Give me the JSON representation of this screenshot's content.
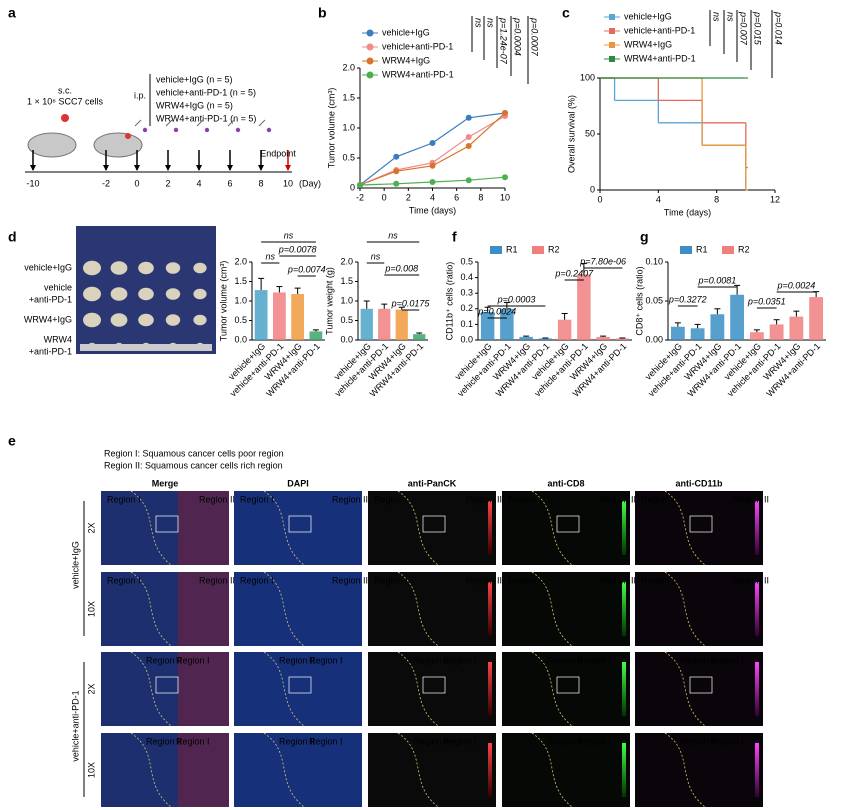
{
  "panel_a": {
    "label": "a",
    "sc": "s.c.",
    "cells": "1 × 10⁶ SCC7 cells",
    "ip": "i.p.",
    "groups": [
      "vehicle+IgG (n = 5)",
      "vehicle+anti-PD-1 (n = 5)",
      "WRW4+IgG (n = 5)",
      "WRW4+anti-PD-1 (n = 5)"
    ],
    "endpoint": "Endpoint",
    "days": [
      -10,
      -2,
      0,
      2,
      4,
      6,
      8,
      10
    ],
    "day_unit": "(Day)"
  },
  "chart_data": [
    {
      "type": "line",
      "panel": "b",
      "x": [
        -2,
        1,
        4,
        7,
        10
      ],
      "xlim": [
        -2,
        10
      ],
      "xticks": [
        -2,
        0,
        2,
        4,
        6,
        8,
        10
      ],
      "ylim": [
        0,
        2
      ],
      "yticks": [
        0,
        0.5,
        {
          "value": 1,
          "label": "1.0"
        },
        1.5,
        {
          "value": 2,
          "label": "2.0"
        }
      ],
      "xlabel": "Time (days)",
      "ylabel": "Tumor volume (cm³)",
      "series": [
        {
          "name": "vehicle+IgG",
          "color": "#3b7bbf",
          "values": [
            0.05,
            0.52,
            0.75,
            1.17,
            1.25
          ]
        },
        {
          "name": "vehicle+anti-PD-1",
          "color": "#f28a8a",
          "values": [
            0.05,
            0.3,
            0.42,
            0.85,
            1.2
          ]
        },
        {
          "name": "WRW4+IgG",
          "color": "#d9752b",
          "values": [
            0.05,
            0.28,
            0.37,
            0.7,
            1.25
          ]
        },
        {
          "name": "WRW4+anti-PD-1",
          "color": "#4caf50",
          "values": [
            0.05,
            0.07,
            0.1,
            0.13,
            0.18
          ]
        }
      ],
      "annotations": [
        "ns",
        "ns",
        "p=1.24e-07",
        "p=0.0004",
        "p=0.0007"
      ]
    },
    {
      "type": "step",
      "panel": "c",
      "x": [
        0,
        1,
        4,
        7,
        10
      ],
      "xlim": [
        0,
        12
      ],
      "xticks": [
        0,
        4,
        8,
        12
      ],
      "ylim": [
        0,
        100
      ],
      "yticks": [
        0,
        50,
        100
      ],
      "xlabel": "Time (days)",
      "ylabel": "Overall survival (%)",
      "series": [
        {
          "name": "vehicle+IgG",
          "color": "#5aa5d6",
          "values": [
            100,
            80,
            60,
            40,
            0
          ]
        },
        {
          "name": "vehicle+anti-PD-1",
          "color": "#e36b5b",
          "values": [
            100,
            100,
            80,
            60,
            20
          ]
        },
        {
          "name": "WRW4+IgG",
          "color": "#e8963f",
          "values": [
            100,
            100,
            100,
            40,
            0
          ]
        },
        {
          "name": "WRW4+anti-PD-1",
          "color": "#2e8b3d",
          "values": [
            100,
            100,
            100,
            100,
            100
          ]
        }
      ],
      "annotations": [
        "ns",
        "ns",
        "p=0.007",
        "p=0.015",
        "p=0.014"
      ]
    },
    {
      "type": "bar",
      "categories": [
        "vehicle+IgG",
        "vehicle+anti-PD-1",
        "WRW4+IgG",
        "WRW4+anti-PD-1"
      ],
      "values": [
        1.28,
        1.22,
        1.18,
        0.22
      ],
      "errors": [
        0.3,
        0.15,
        0.15,
        0.04
      ],
      "colors": [
        "#4aa3c7",
        "#f07f7f",
        "#f09a3e",
        "#3aa668"
      ],
      "ylim": [
        0,
        2
      ],
      "yticks": [
        {
          "value": 0,
          "label": "0.0"
        },
        0.5,
        {
          "value": 1,
          "label": "1.0"
        },
        1.5,
        {
          "value": 2,
          "label": "2.0"
        }
      ],
      "ylabel": "Tumor volume (cm³)",
      "annotations": [
        "ns",
        "ns",
        "p=0.0078",
        "p=0.0074"
      ]
    },
    {
      "type": "bar",
      "categories": [
        "vehicle+IgG",
        "vehicle+anti-PD-1",
        "WRW4+IgG",
        "WRW4+anti-PD-1"
      ],
      "values": [
        0.8,
        0.8,
        0.78,
        0.15
      ],
      "errors": [
        0.2,
        0.12,
        0.06,
        0.03
      ],
      "colors": [
        "#4aa3c7",
        "#f07f7f",
        "#f09a3e",
        "#3aa668"
      ],
      "ylim": [
        0,
        2
      ],
      "yticks": [
        {
          "value": 0,
          "label": "0.0"
        },
        0.5,
        {
          "value": 1,
          "label": "1.0"
        },
        1.5,
        {
          "value": 2,
          "label": "2.0"
        }
      ],
      "ylabel": "Tumor weight (g)",
      "annotations": [
        "ns",
        "ns",
        "p=0.008",
        "p=0.0175"
      ]
    },
    {
      "type": "bar",
      "panel": "f",
      "categories": [
        "vehicle+IgG",
        "vehicle+anti-PD-1",
        "WRW4+IgG",
        "WRW4+anti-PD-1",
        "vehicle+IgG",
        "vehicle+anti-PD-1",
        "WRW4+IgG",
        "WRW4+anti-PD-1"
      ],
      "series": [
        {
          "name": "R1",
          "color": "#3a8fc6",
          "values": [
            0.18,
            0.2,
            0.02,
            0.01,
            null,
            null,
            null,
            null
          ],
          "errors": [
            0.03,
            0.04,
            0.005,
            0.003,
            null,
            null,
            null,
            null
          ]
        },
        {
          "name": "R2",
          "color": "#f07f7f",
          "values": [
            null,
            null,
            null,
            null,
            0.13,
            0.42,
            0.02,
            0.01
          ],
          "errors": [
            null,
            null,
            null,
            null,
            0.04,
            0.07,
            0.005,
            0.003
          ]
        }
      ],
      "ylim": [
        0,
        0.5
      ],
      "yticks": [
        {
          "value": 0,
          "label": "0.0"
        },
        0.1,
        0.2,
        0.3,
        0.4,
        0.5
      ],
      "ylabel": "CD11b⁺ cells (ratio)",
      "annotations": [
        "p=0.0024",
        "p=0.0003",
        "p=7.80e-06",
        "p=0.2407"
      ]
    },
    {
      "type": "bar",
      "panel": "g",
      "categories": [
        "vehicle+IgG",
        "vehicle+anti-PD-1",
        "WRW4+IgG",
        "WRW4+anti-PD-1",
        "vehicle+IgG",
        "vehicle+anti-PD-1",
        "WRW4+IgG",
        "WRW4+anti-PD-1"
      ],
      "series": [
        {
          "name": "R1",
          "color": "#3a8fc6",
          "values": [
            0.017,
            0.015,
            0.033,
            0.058,
            null,
            null,
            null,
            null
          ],
          "errors": [
            0.005,
            0.005,
            0.007,
            0.012,
            null,
            null,
            null,
            null
          ]
        },
        {
          "name": "R2",
          "color": "#f07f7f",
          "values": [
            null,
            null,
            null,
            null,
            0.01,
            0.02,
            0.03,
            0.055
          ],
          "errors": [
            null,
            null,
            null,
            null,
            0.003,
            0.006,
            0.007,
            0.007
          ]
        }
      ],
      "ylim": [
        0,
        0.1
      ],
      "yticks": [
        {
          "value": 0,
          "label": "0.00"
        },
        {
          "value": 0.05,
          "label": "0.05"
        },
        {
          "value": 0.1,
          "label": "0.10"
        }
      ],
      "ylabel": "CD8⁺ cells (ratio)",
      "annotations": [
        "p=0.3272",
        "p=0.0081",
        "p=0.0351",
        "p=0.0024"
      ]
    }
  ],
  "panel_d": {
    "label": "d",
    "rows": [
      [
        "vehicle+IgG"
      ],
      [
        "vehicle",
        "+anti-PD-1"
      ],
      [
        "WRW4+IgG"
      ],
      [
        "WRW4",
        "+anti-PD-1"
      ]
    ]
  },
  "panel_e": {
    "label": "e",
    "notes": [
      "Region I: Squamous cancer cells poor region",
      "Region II: Squamous cancer cells rich region"
    ],
    "columns": [
      "Merge",
      "DAPI",
      "anti-PanCK",
      "anti-CD8",
      "anti-CD11b"
    ],
    "groups": [
      "vehicle+IgG",
      "vehicle+anti-PD-1"
    ],
    "rows": [
      {
        "zoom": "2X",
        "regions": [
          "Region I",
          "Region II"
        ]
      },
      {
        "zoom": "10X",
        "regions": [
          "Region I",
          "Region II"
        ]
      },
      {
        "zoom": "2X",
        "regions": [
          "Region II",
          "Region I"
        ]
      },
      {
        "zoom": "10X",
        "regions": [
          "Region II",
          "Region I"
        ]
      }
    ]
  }
}
